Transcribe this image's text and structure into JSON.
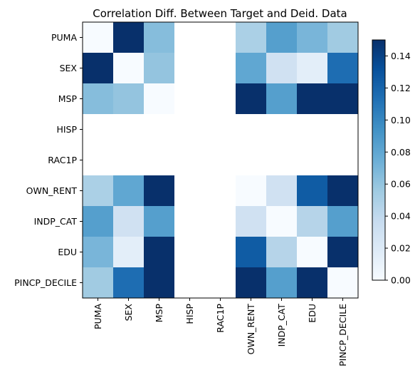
{
  "chart_data": {
    "type": "heatmap",
    "title": "Correlation Diff. Between Target and Deid. Data",
    "rows": [
      "PUMA",
      "SEX",
      "MSP",
      "HISP",
      "RAC1P",
      "OWN_RENT",
      "INDP_CAT",
      "EDU",
      "PINCP_DECILE"
    ],
    "cols": [
      "PUMA",
      "SEX",
      "MSP",
      "HISP",
      "RAC1P",
      "OWN_RENT",
      "INDP_CAT",
      "EDU",
      "PINCP_DECILE"
    ],
    "values": [
      [
        0.0,
        0.15,
        0.065,
        null,
        null,
        0.05,
        0.085,
        0.07,
        0.055
      ],
      [
        0.15,
        0.0,
        0.06,
        null,
        null,
        0.08,
        0.03,
        0.015,
        0.115
      ],
      [
        0.065,
        0.06,
        0.0,
        null,
        null,
        0.15,
        0.085,
        0.15,
        0.15
      ],
      [
        null,
        null,
        null,
        null,
        null,
        null,
        null,
        null,
        null
      ],
      [
        null,
        null,
        null,
        null,
        null,
        null,
        null,
        null,
        null
      ],
      [
        0.05,
        0.08,
        0.15,
        null,
        null,
        0.0,
        0.03,
        0.125,
        0.15
      ],
      [
        0.085,
        0.03,
        0.085,
        null,
        null,
        0.03,
        0.0,
        0.045,
        0.085
      ],
      [
        0.07,
        0.015,
        0.15,
        null,
        null,
        0.125,
        0.045,
        0.0,
        0.15
      ],
      [
        0.055,
        0.115,
        0.15,
        null,
        null,
        0.15,
        0.085,
        0.15,
        0.0
      ]
    ],
    "colorscale": "Blues",
    "vmin": 0.0,
    "vmax": 0.15,
    "colorbar_ticks": [
      "0.00",
      "0.02",
      "0.04",
      "0.06",
      "0.08",
      "0.10",
      "0.12",
      "0.14"
    ],
    "colorbar_tick_values": [
      0.0,
      0.02,
      0.04,
      0.06,
      0.08,
      0.1,
      0.12,
      0.14
    ],
    "grid": false
  }
}
